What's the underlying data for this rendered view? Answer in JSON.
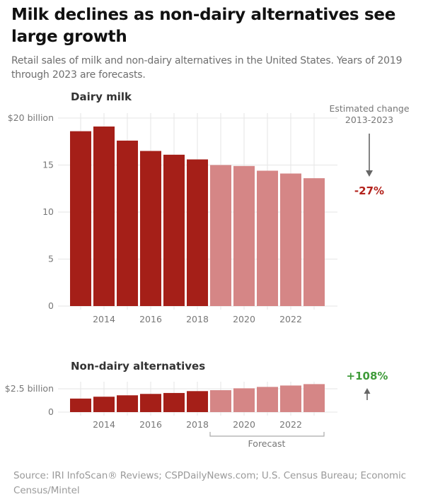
{
  "header": {
    "title": "Milk declines as non-dairy alternatives see large growth",
    "subtitle": "Retail sales of milk and non-dairy alternatives in the United States. Years of 2019 through 2023 are forecasts."
  },
  "footer": {
    "source": "Source: IRI InfoScan® Reviews; CSPDailyNews.com; U.S. Census Bureau;  Economic Census/Mintel"
  },
  "colors": {
    "actual": "#a51f18",
    "forecast": "#d58686",
    "decline_label": "#b3221c",
    "growth_label": "#3f9b3a",
    "arrow": "#666666",
    "grid": "#e6e6e6"
  },
  "chart_data": [
    {
      "type": "bar",
      "title": "Dairy milk",
      "x": [
        2013,
        2014,
        2015,
        2016,
        2017,
        2018,
        2019,
        2020,
        2021,
        2022,
        2023
      ],
      "values": [
        18.6,
        19.1,
        17.6,
        16.5,
        16.1,
        15.6,
        15.0,
        14.9,
        14.4,
        14.1,
        13.6
      ],
      "forecast_from": 2019,
      "xlabel": "",
      "ylabel": "",
      "yticks": [
        0,
        5,
        10,
        15,
        20
      ],
      "ytick_labels": [
        "0",
        "5",
        "10",
        "15",
        "$20 billion"
      ],
      "xticks": [
        2014,
        2016,
        2018,
        2020,
        2022
      ],
      "xtick_labels": [
        "2014",
        "2016",
        "2018",
        "2020",
        "2022"
      ],
      "ylim": [
        0,
        20
      ],
      "grid": true,
      "annotation": {
        "header": [
          "Estimated change",
          "2013-2023"
        ],
        "change": "-27%",
        "direction": "down"
      }
    },
    {
      "type": "bar",
      "title": "Non-dairy alternatives",
      "x": [
        2013,
        2014,
        2015,
        2016,
        2017,
        2018,
        2019,
        2020,
        2021,
        2022,
        2023
      ],
      "values": [
        1.45,
        1.65,
        1.8,
        1.95,
        2.05,
        2.25,
        2.35,
        2.55,
        2.7,
        2.85,
        3.0
      ],
      "forecast_from": 2019,
      "xlabel": "",
      "ylabel": "",
      "yticks": [
        0,
        2.5
      ],
      "ytick_labels": [
        "0",
        "$2.5 billion"
      ],
      "xticks": [
        2014,
        2016,
        2018,
        2020,
        2022
      ],
      "xtick_labels": [
        "2014",
        "2016",
        "2018",
        "2020",
        "2022"
      ],
      "ylim": [
        0,
        2.5
      ],
      "grid": true,
      "annotation": {
        "change": "+108%",
        "direction": "up"
      },
      "forecast_label": "Forecast"
    }
  ]
}
